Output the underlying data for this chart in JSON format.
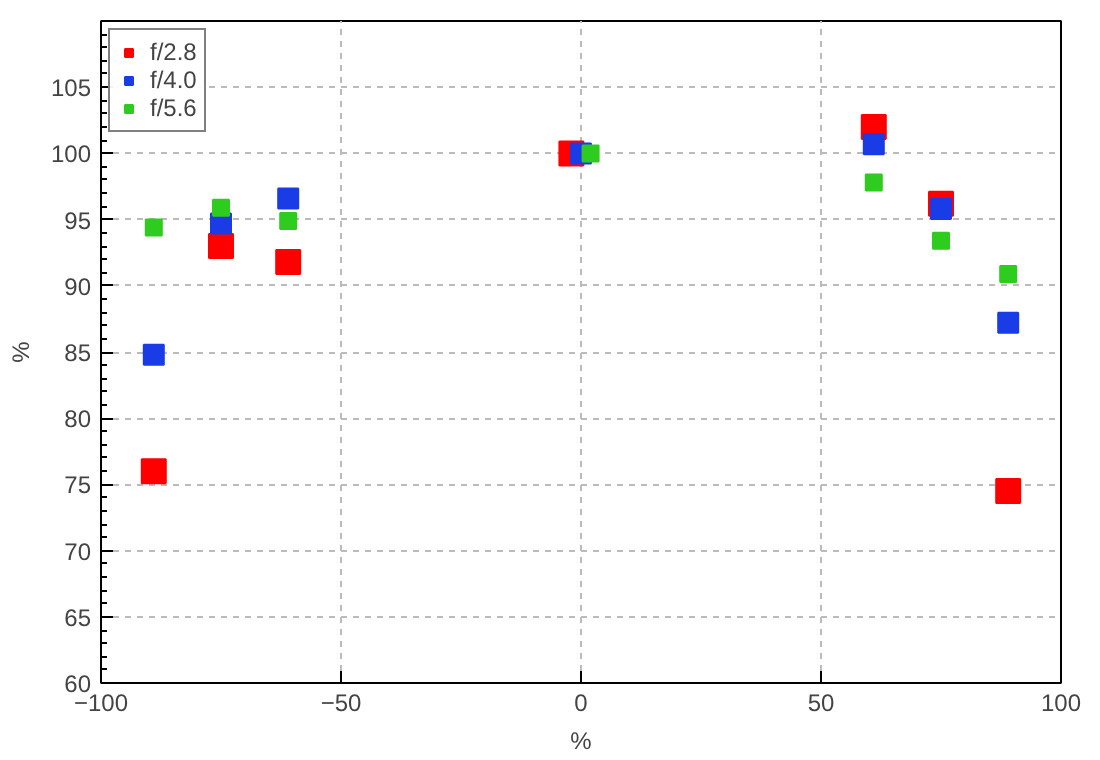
{
  "chart_data": {
    "type": "scatter",
    "xlabel": "%",
    "ylabel": "%",
    "xlim": [
      -100,
      100
    ],
    "ylim": [
      60,
      110
    ],
    "xticks": [
      -100,
      -50,
      0,
      50,
      100
    ],
    "yticks": [
      60,
      65,
      70,
      75,
      80,
      85,
      90,
      95,
      100,
      105
    ],
    "grid": true,
    "legend": "top left",
    "marker": "square",
    "series": [
      {
        "name": "f/2.8",
        "color": "#ff0000",
        "x": [
          -89,
          -75,
          -61,
          -2,
          61,
          75,
          89
        ],
        "values": [
          76,
          93,
          91.8,
          100,
          102,
          96.2,
          74.5
        ]
      },
      {
        "name": "f/4.0",
        "color": "#1a3ce6",
        "x": [
          -89,
          -75,
          -61,
          0,
          61,
          75,
          89
        ],
        "values": [
          84.8,
          94.7,
          96.6,
          100,
          100.7,
          95.8,
          87.2
        ]
      },
      {
        "name": "f/5.6",
        "color": "#2ecc1e",
        "x": [
          -89,
          -75,
          -61,
          2,
          61,
          75,
          89
        ],
        "values": [
          94.4,
          95.9,
          94.9,
          100,
          97.8,
          93.4,
          90.9
        ]
      }
    ]
  }
}
